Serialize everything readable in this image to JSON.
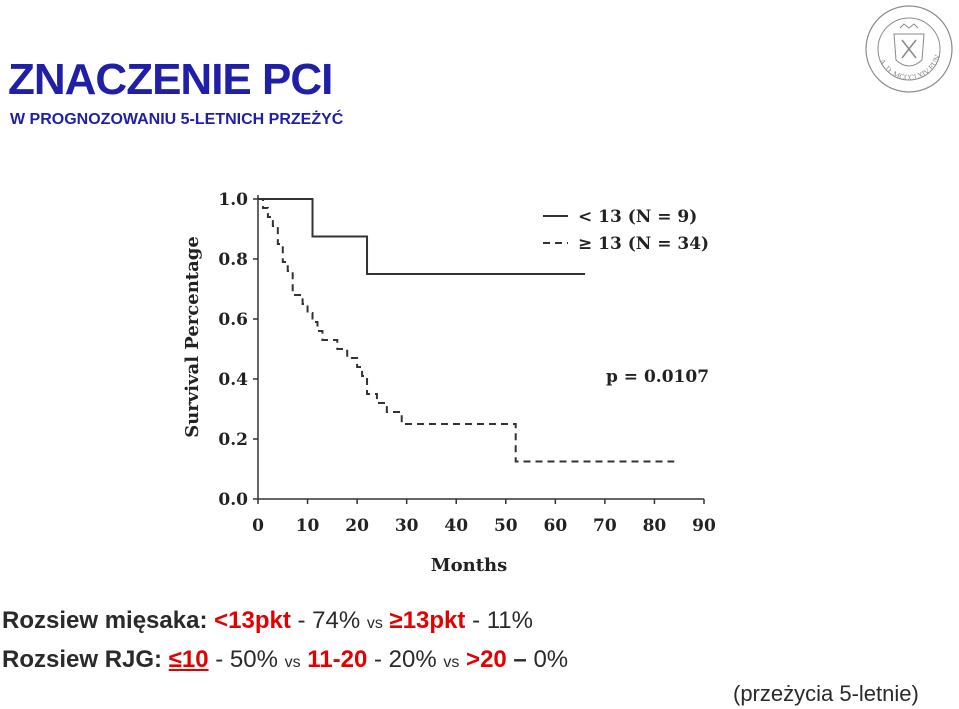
{
  "header": {
    "title": "ZNACZENIE PCI",
    "subtitle": "W PROGNOZOWANIU 5-LETNICH PRZEŻYĆ"
  },
  "seal": {
    "icon": "university-seal-icon",
    "text": "A. D. MCCCLXIV FUNDATA"
  },
  "chart_data": {
    "type": "line",
    "xlabel": "Months",
    "ylabel": "Survival Percentage",
    "xlim": [
      0,
      90
    ],
    "ylim": [
      0,
      1.0
    ],
    "xticks": [
      "0",
      "10",
      "20",
      "30",
      "40",
      "50",
      "60",
      "70",
      "80",
      "90"
    ],
    "yticks": [
      "0.0",
      "0.2",
      "0.4",
      "0.6",
      "0.8",
      "1.0"
    ],
    "legend_position": "top-right",
    "annotation": "p = 0.0107",
    "series": [
      {
        "name": "< 13  (N = 9)",
        "style": "solid",
        "points": [
          [
            0,
            1.0
          ],
          [
            11,
            1.0
          ],
          [
            11,
            0.875
          ],
          [
            22,
            0.875
          ],
          [
            22,
            0.75
          ],
          [
            66,
            0.75
          ]
        ]
      },
      {
        "name": "≥ 13  (N = 34)",
        "style": "dashed",
        "points": [
          [
            0,
            1.0
          ],
          [
            1,
            1.0
          ],
          [
            1,
            0.97
          ],
          [
            2,
            0.97
          ],
          [
            2,
            0.94
          ],
          [
            3,
            0.94
          ],
          [
            3,
            0.91
          ],
          [
            4,
            0.91
          ],
          [
            4,
            0.85
          ],
          [
            5,
            0.85
          ],
          [
            5,
            0.79
          ],
          [
            6,
            0.79
          ],
          [
            6,
            0.76
          ],
          [
            7,
            0.76
          ],
          [
            7,
            0.68
          ],
          [
            9,
            0.68
          ],
          [
            9,
            0.65
          ],
          [
            10,
            0.65
          ],
          [
            10,
            0.62
          ],
          [
            11,
            0.62
          ],
          [
            11,
            0.59
          ],
          [
            12,
            0.59
          ],
          [
            12,
            0.56
          ],
          [
            13,
            0.56
          ],
          [
            13,
            0.53
          ],
          [
            16,
            0.53
          ],
          [
            16,
            0.5
          ],
          [
            18,
            0.5
          ],
          [
            18,
            0.47
          ],
          [
            20,
            0.47
          ],
          [
            20,
            0.44
          ],
          [
            21,
            0.44
          ],
          [
            21,
            0.41
          ],
          [
            22,
            0.41
          ],
          [
            22,
            0.35
          ],
          [
            24,
            0.35
          ],
          [
            24,
            0.32
          ],
          [
            26,
            0.32
          ],
          [
            26,
            0.29
          ],
          [
            29,
            0.29
          ],
          [
            29,
            0.25
          ],
          [
            52,
            0.25
          ],
          [
            52,
            0.125
          ],
          [
            84,
            0.125
          ]
        ]
      }
    ]
  },
  "summary": {
    "line1": {
      "label": "Rozsiew mięsaka:",
      "g1": "<13pkt",
      "sep1": " - 74% ",
      "vs1": "vs",
      "g2": "≥13pkt",
      "sep2": " - 11%"
    },
    "line2": {
      "label": "Rozsiew RJG:",
      "g1": "≤10",
      "sep1": " - 50% ",
      "vs1": "vs",
      "g2": "11-20",
      "sep2": " - 20% ",
      "vs2": "vs",
      "g3": ">20",
      "dash": " – ",
      "val3": "0%"
    },
    "note": "(przeżycia 5-letnie)"
  }
}
